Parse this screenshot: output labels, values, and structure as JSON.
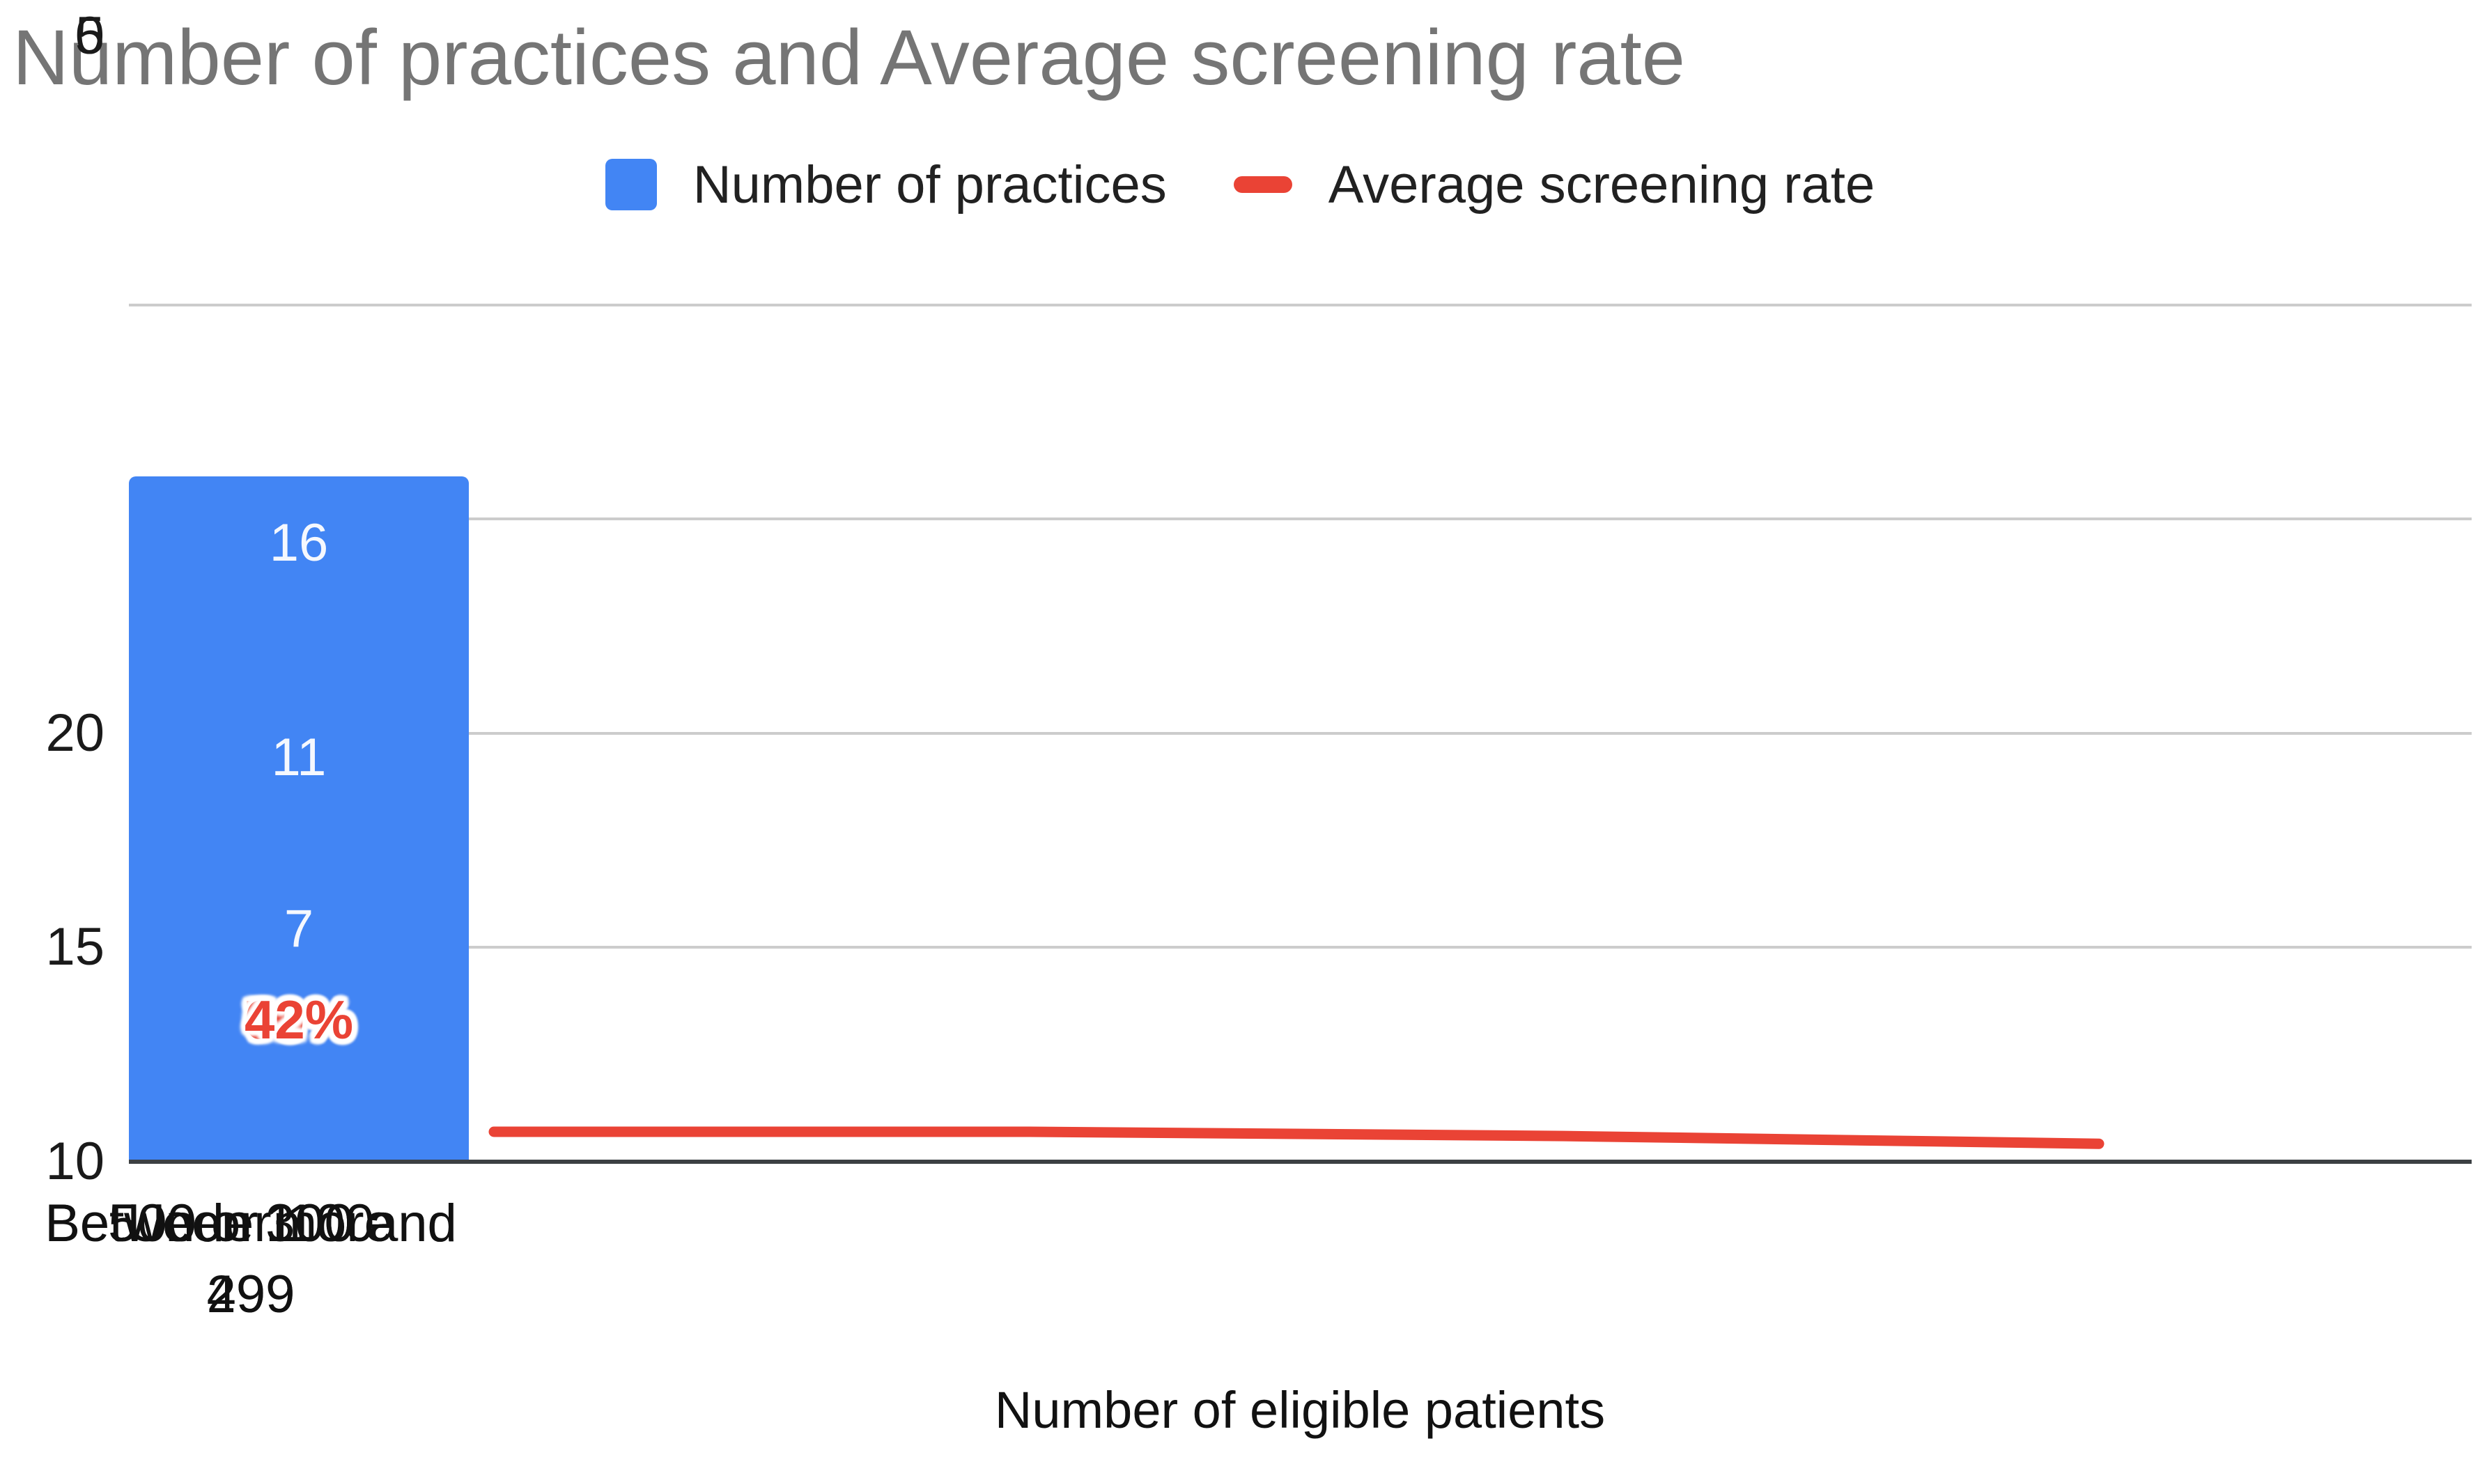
{
  "title": "Number of practices and Average screening rate",
  "legend": {
    "items": [
      {
        "label": "Number of practices",
        "swatch": "bar-swatch",
        "color": "#4285f4"
      },
      {
        "label": "Average screening rate",
        "swatch": "line-swatch",
        "color": "#ea4335"
      }
    ]
  },
  "y_axis": {
    "ticks": [
      "20",
      "15",
      "10",
      "5",
      "0"
    ]
  },
  "x_axis": {
    "title": "Number of eligible patients",
    "categories": [
      "Under 100",
      "Between 100 and 299",
      "Between 300 and 499",
      "500 or more"
    ]
  },
  "chart_data": {
    "type": "combo-bar-line",
    "title": "Number of practices and Average screening rate",
    "xlabel": "Number of eligible patients",
    "ylabel": "",
    "ylim": [
      0,
      20
    ],
    "yticks": [
      0,
      5,
      10,
      15,
      20
    ],
    "grid": true,
    "legend_position": "top",
    "categories": [
      "Under 100",
      "Between 100 and 299",
      "Between 300 and 499",
      "500 or more"
    ],
    "series": [
      {
        "name": "Number of practices",
        "type": "bar",
        "color": "#4285f4",
        "values": [
          12,
          16,
          11,
          7
        ],
        "labels": [
          "12",
          "16",
          "11",
          "7"
        ],
        "label_color": "#ffffff"
      },
      {
        "name": "Average screening rate",
        "type": "line",
        "color": "#ea4335",
        "values_percent": [
          70,
          70,
          60,
          42
        ],
        "labels": [
          "70%",
          "70%",
          "60%",
          "42%"
        ],
        "axis_values": [
          0.7,
          0.7,
          0.6,
          0.42
        ],
        "note": "plotted against the left value axis as fractions, so the line runs just above the baseline"
      }
    ]
  },
  "colors": {
    "bar": "#4285f4",
    "line": "#ea4335",
    "title_text": "#757575",
    "gridline": "#cccccc",
    "axis_line": "#3c4043",
    "tick_text": "#1a1a1a",
    "category_text": "#111111",
    "bar_label_text": "#ffffff",
    "background": "#ffffff"
  }
}
